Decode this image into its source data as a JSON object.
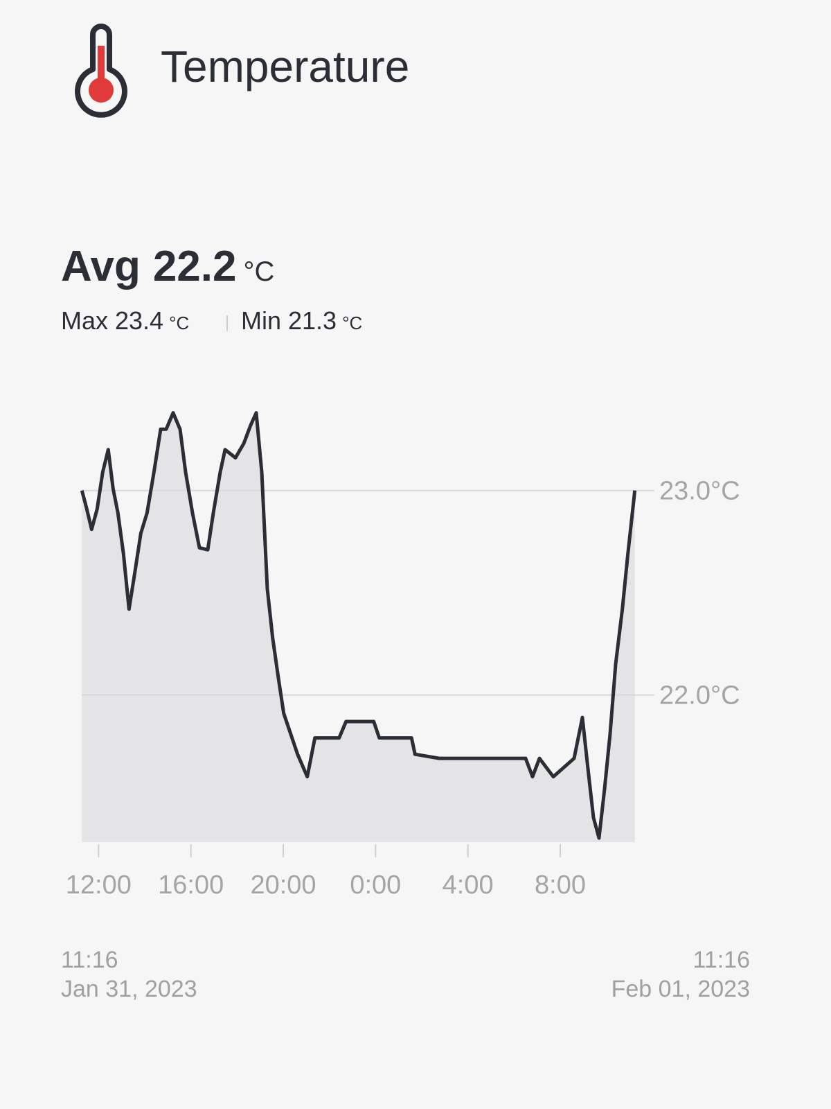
{
  "header": {
    "title": "Temperature"
  },
  "stats": {
    "avg_label": "Avg",
    "avg": 22.2,
    "avg_unit": "°C",
    "max_label": "Max",
    "max": 23.4,
    "max_unit": "°C",
    "min_label": "Min",
    "min": 21.3,
    "min_unit": "°C"
  },
  "chart_data": {
    "type": "line",
    "color": "#2b2e36",
    "area_color": "#e4e4e6",
    "grid": true,
    "x": [
      11.28,
      11.49,
      11.7,
      11.94,
      12.18,
      12.42,
      12.63,
      12.84,
      13.08,
      13.32,
      13.56,
      13.83,
      14.1,
      14.4,
      14.69,
      14.93,
      15.23,
      15.53,
      15.77,
      16.07,
      16.37,
      16.73,
      16.97,
      17.27,
      17.48,
      17.93,
      18.29,
      18.59,
      18.83,
      19.07,
      19.31,
      19.54,
      19.78,
      20.02,
      20.32,
      20.62,
      21.04,
      21.37,
      22.42,
      22.72,
      23.92,
      24.16,
      25.56,
      25.71,
      26.76,
      30.5,
      30.8,
      31.1,
      31.7,
      32.6,
      32.96,
      33.2,
      33.44,
      33.68,
      33.92,
      34.16,
      34.4,
      34.69,
      34.93,
      35.23
    ],
    "values": [
      23.0,
      22.91,
      22.81,
      22.91,
      23.09,
      23.2,
      23.01,
      22.89,
      22.69,
      22.42,
      22.59,
      22.79,
      22.89,
      23.09,
      23.3,
      23.3,
      23.38,
      23.3,
      23.09,
      22.89,
      22.72,
      22.71,
      22.89,
      23.09,
      23.2,
      23.16,
      23.23,
      23.32,
      23.38,
      23.09,
      22.52,
      22.28,
      22.09,
      21.91,
      21.81,
      21.71,
      21.6,
      21.79,
      21.79,
      21.87,
      21.87,
      21.79,
      21.79,
      21.71,
      21.69,
      21.69,
      21.6,
      21.69,
      21.6,
      21.69,
      21.89,
      21.64,
      21.4,
      21.3,
      21.54,
      21.81,
      22.15,
      22.42,
      22.69,
      23.0
    ],
    "xlim": [
      11.27,
      35.27
    ],
    "ylim": [
      21.28,
      23.45
    ],
    "xticks": [
      {
        "value": 12,
        "label": "12:00"
      },
      {
        "value": 16,
        "label": "16:00"
      },
      {
        "value": 20,
        "label": "20:00"
      },
      {
        "value": 24,
        "label": "0:00"
      },
      {
        "value": 28,
        "label": "4:00"
      },
      {
        "value": 32,
        "label": "8:00"
      }
    ],
    "yticks": [
      {
        "value": 22,
        "label": "22.0°C"
      },
      {
        "value": 23,
        "label": "23.0°C"
      }
    ]
  },
  "range": {
    "start": {
      "time": "11:16",
      "date": "Jan 31, 2023"
    },
    "end": {
      "time": "11:16",
      "date": "Feb 01, 2023"
    }
  }
}
